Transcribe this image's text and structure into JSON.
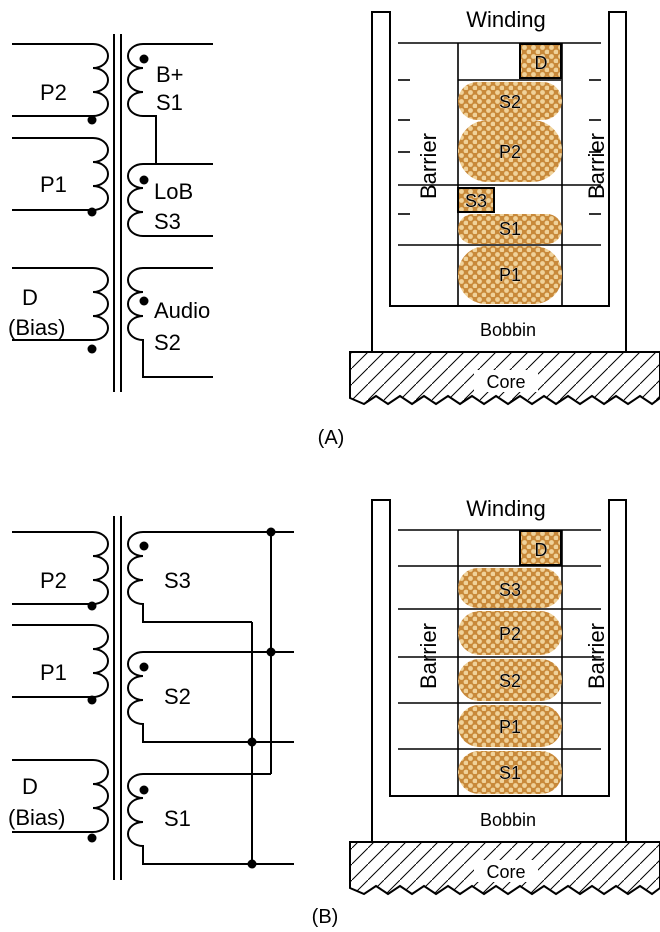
{
  "panel_a": {
    "caption": "(A)",
    "schematic": {
      "primary": [
        "P2",
        "P1"
      ],
      "bias": [
        "D",
        "(Bias)"
      ],
      "secondary": [
        {
          "top": "B+",
          "bottom": "S1"
        },
        {
          "top": "LoB",
          "bottom": "S3"
        },
        {
          "top": "Audio",
          "bottom": "S2"
        }
      ]
    },
    "cross_section": {
      "winding_label": "Winding",
      "barrier_label": "Barrier",
      "bobbin_label": "Bobbin",
      "core_label": "Core",
      "layers": [
        "D",
        "S2",
        "P2",
        "S3",
        "S1",
        "P1"
      ]
    }
  },
  "panel_b": {
    "caption": "(B)",
    "schematic": {
      "primary": [
        "P2",
        "P1"
      ],
      "bias": [
        "D",
        "(Bias)"
      ],
      "secondary": [
        "S3",
        "S2",
        "S1"
      ]
    },
    "cross_section": {
      "winding_label": "Winding",
      "barrier_label": "Barrier",
      "bobbin_label": "Bobbin",
      "core_label": "Core",
      "layers": [
        "D",
        "S3",
        "P2",
        "S2",
        "P1",
        "S1"
      ]
    }
  },
  "colors": {
    "winding_fill": "#c8893a",
    "winding_dot": "#f0d29a",
    "line": "#000000",
    "background": "#ffffff"
  }
}
